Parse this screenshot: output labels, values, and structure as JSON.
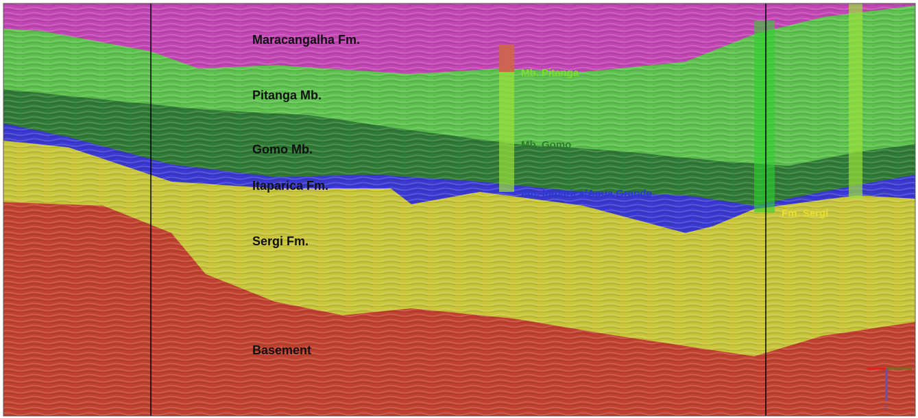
{
  "layers": [
    {
      "label": "Maracangalha Fm."
    },
    {
      "label": "Pitanga Mb."
    },
    {
      "label": "Gomo Mb."
    },
    {
      "label": "Itaparica Fm."
    },
    {
      "label": "Sergi Fm."
    },
    {
      "label": "Basement"
    }
  ],
  "well_markers": [
    {
      "label": "Mb. Pitanga"
    },
    {
      "label": "Mb. Gomo"
    },
    {
      "label": "Fm. Itaparica/Agua Grande"
    },
    {
      "label": "Fm. Sergi"
    }
  ],
  "axis_triad": {
    "z": "z"
  }
}
